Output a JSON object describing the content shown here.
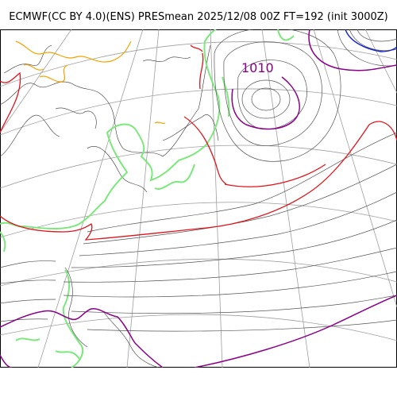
{
  "map": {
    "title": "ECMWF(CC BY 4.0)(ENS) PRESmean 2025/12/08 00Z FT=192 (init 3000Z)",
    "contour_labels": [
      {
        "text": "1010",
        "color": "#8a008a"
      }
    ],
    "colors": {
      "isobar_default": "#555555",
      "isobar_1010": "#8a008a",
      "isobar_1015": "#e0141b",
      "isobar_low": "#1020d0",
      "high_terrain": "#f4a300",
      "coast_highlight": "#7ce87c",
      "graticule": "#9e9e9e"
    }
  }
}
